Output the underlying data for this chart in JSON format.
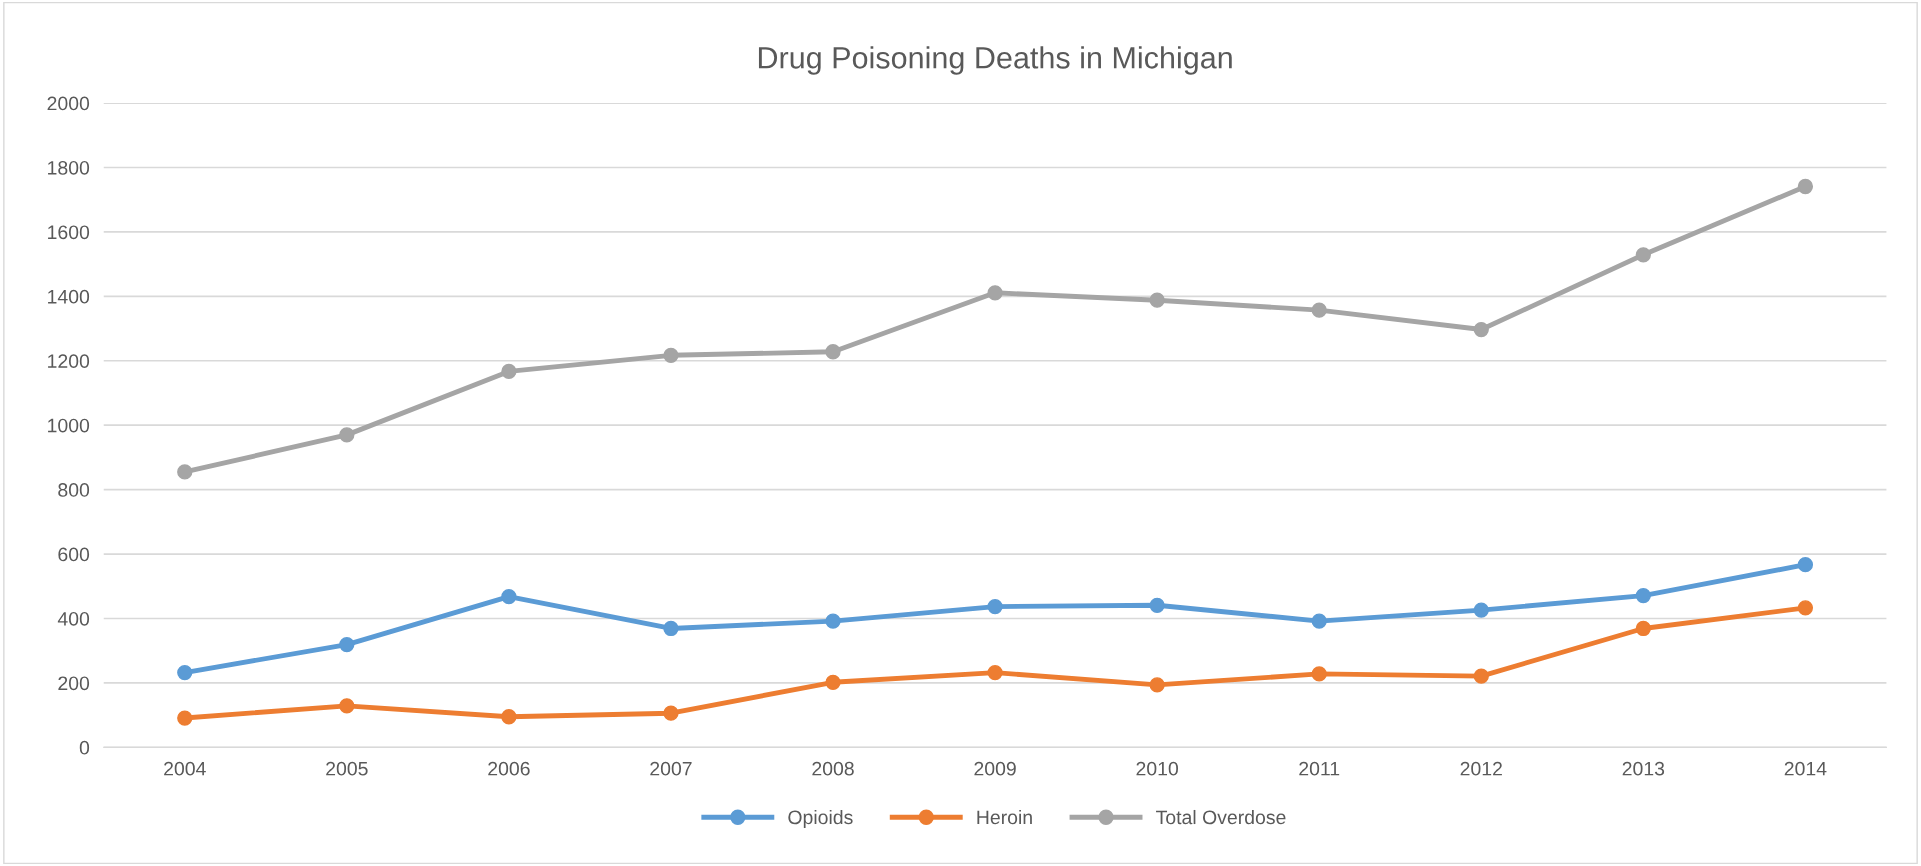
{
  "chart_data": {
    "type": "line",
    "title": "Drug Poisoning Deaths in Michigan",
    "categories": [
      "2004",
      "2005",
      "2006",
      "2007",
      "2008",
      "2009",
      "2010",
      "2011",
      "2012",
      "2013",
      "2014"
    ],
    "series": [
      {
        "name": "Opioids",
        "color": "#5b9bd5",
        "values": [
          232,
          319,
          468,
          369,
          392,
          437,
          441,
          392,
          426,
          471,
          567
        ]
      },
      {
        "name": "Heroin",
        "color": "#ed7d31",
        "values": [
          91,
          129,
          95,
          106,
          202,
          232,
          194,
          228,
          221,
          369,
          433
        ]
      },
      {
        "name": "Total Overdose",
        "color": "#a5a5a5",
        "values": [
          855,
          970,
          1167,
          1217,
          1228,
          1411,
          1388,
          1357,
          1297,
          1529,
          1741
        ]
      }
    ],
    "ylim": [
      0,
      2000
    ],
    "yticks": [
      0,
      200,
      400,
      600,
      800,
      1000,
      1200,
      1400,
      1600,
      1800,
      2000
    ],
    "grid": "y",
    "legend": "bottom",
    "marker": "circle",
    "line_style": "solid"
  }
}
